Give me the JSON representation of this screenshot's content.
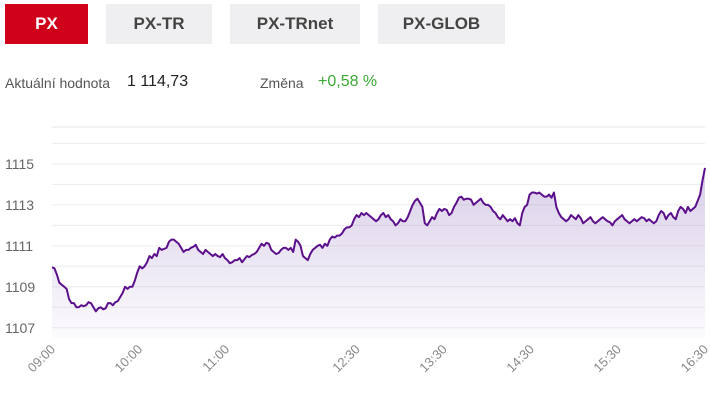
{
  "tabs": [
    {
      "label": "PX",
      "active": true
    },
    {
      "label": "PX-TR",
      "active": false
    },
    {
      "label": "PX-TRnet",
      "active": false
    },
    {
      "label": "PX-GLOB",
      "active": false
    }
  ],
  "info": {
    "current_label": "Aktuální hodnota",
    "current_value": "1 114,73",
    "change_label": "Změna",
    "change_value": "+0,58 %"
  },
  "colors": {
    "active_tab": "#d0021b",
    "tab_bg": "#efeff1",
    "line": "#5b0f8a",
    "change_positive": "#3aa935"
  },
  "chart_data": {
    "type": "area",
    "title": "",
    "xlabel": "",
    "ylabel": "",
    "ylim": [
      1106.5,
      1116.8
    ],
    "yticks": [
      "1107",
      "1109",
      "1111",
      "1113",
      "1115"
    ],
    "xticks": [
      "09:00",
      "10:00",
      "11:00",
      "12:30",
      "13:30",
      "14:30",
      "15:30",
      "16:30"
    ],
    "series": [
      {
        "values": [
          1109.95,
          1109.9,
          1109.6,
          1109.2,
          1109.1,
          1109.0,
          1108.9,
          1108.4,
          1108.2,
          1108.2,
          1108.0,
          1108.0,
          1108.1,
          1108.05,
          1108.1,
          1108.25,
          1108.2,
          1108.0,
          1107.8,
          1107.95,
          1108.0,
          1107.9,
          1107.95,
          1108.2,
          1108.2,
          1108.1,
          1108.25,
          1108.3,
          1108.5,
          1108.7,
          1109.0,
          1108.9,
          1109.0,
          1109.0,
          1109.3,
          1109.7,
          1110.0,
          1109.9,
          1110.0,
          1110.2,
          1110.5,
          1110.4,
          1110.6,
          1110.5,
          1110.9,
          1110.8,
          1110.85,
          1110.9,
          1111.2,
          1111.3,
          1111.3,
          1111.2,
          1111.1,
          1110.9,
          1110.7,
          1110.8,
          1110.8,
          1110.9,
          1110.95,
          1111.05,
          1110.8,
          1110.7,
          1110.6,
          1110.8,
          1110.7,
          1110.6,
          1110.5,
          1110.6,
          1110.5,
          1110.45,
          1110.6,
          1110.4,
          1110.3,
          1110.15,
          1110.2,
          1110.3,
          1110.3,
          1110.4,
          1110.2,
          1110.35,
          1110.5,
          1110.45,
          1110.55,
          1110.6,
          1110.7,
          1110.9,
          1111.1,
          1111.0,
          1111.15,
          1111.1,
          1110.8,
          1110.7,
          1110.6,
          1110.65,
          1110.8,
          1110.9,
          1110.9,
          1110.8,
          1110.9,
          1110.7,
          1111.3,
          1111.2,
          1111.0,
          1110.5,
          1110.4,
          1110.3,
          1110.6,
          1110.8,
          1110.9,
          1111.0,
          1111.05,
          1110.9,
          1111.1,
          1111.0,
          1111.3,
          1111.45,
          1111.4,
          1111.5,
          1111.5,
          1111.6,
          1111.8,
          1111.9,
          1111.9,
          1112.0,
          1112.3,
          1112.5,
          1112.4,
          1112.6,
          1112.5,
          1112.6,
          1112.5,
          1112.4,
          1112.3,
          1112.2,
          1112.3,
          1112.5,
          1112.6,
          1112.4,
          1112.5,
          1112.3,
          1112.2,
          1112.0,
          1112.1,
          1112.3,
          1112.2,
          1112.2,
          1112.4,
          1112.7,
          1113.0,
          1113.2,
          1113.3,
          1113.1,
          1112.9,
          1112.1,
          1112.0,
          1112.2,
          1112.4,
          1112.3,
          1112.6,
          1112.8,
          1112.7,
          1112.8,
          1112.75,
          1112.5,
          1112.6,
          1112.9,
          1113.1,
          1113.35,
          1113.4,
          1113.25,
          1113.3,
          1113.3,
          1113.25,
          1113.0,
          1113.1,
          1113.2,
          1113.3,
          1113.1,
          1113.0,
          1113.0,
          1112.9,
          1112.7,
          1112.6,
          1112.4,
          1112.3,
          1112.5,
          1112.35,
          1112.2,
          1112.3,
          1112.2,
          1112.35,
          1112.1,
          1112.0,
          1112.6,
          1112.9,
          1113.0,
          1113.5,
          1113.6,
          1113.6,
          1113.55,
          1113.6,
          1113.5,
          1113.4,
          1113.4,
          1113.5,
          1113.35,
          1113.6,
          1112.9,
          1112.6,
          1112.4,
          1112.3,
          1112.2,
          1112.3,
          1112.5,
          1112.4,
          1112.3,
          1112.5,
          1112.35,
          1112.1,
          1112.2,
          1112.3,
          1112.4,
          1112.2,
          1112.1,
          1112.2,
          1112.3,
          1112.4,
          1112.3,
          1112.2,
          1112.15,
          1112.0,
          1112.2,
          1112.3,
          1112.4,
          1112.5,
          1112.3,
          1112.2,
          1112.1,
          1112.2,
          1112.3,
          1112.2,
          1112.3,
          1112.4,
          1112.35,
          1112.2,
          1112.3,
          1112.2,
          1112.1,
          1112.2,
          1112.5,
          1112.7,
          1112.6,
          1112.3,
          1112.5,
          1112.6,
          1112.4,
          1112.3,
          1112.7,
          1112.9,
          1112.8,
          1112.6,
          1112.9,
          1112.7,
          1112.8,
          1112.9,
          1113.2,
          1113.5,
          1114.2,
          1114.8
        ]
      }
    ],
    "grid": true,
    "legend": "none"
  }
}
